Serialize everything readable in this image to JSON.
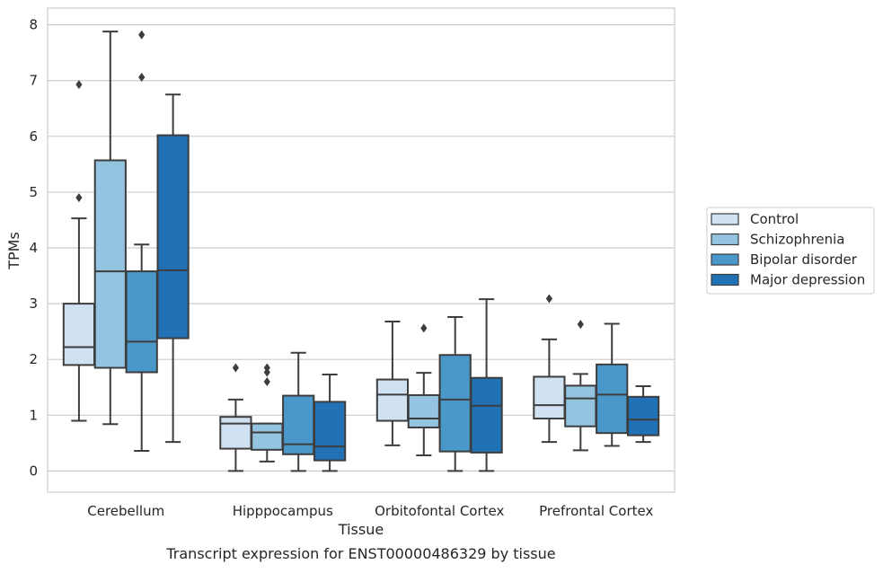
{
  "caption": "Transcript expression for ENST00000486329 by tissue",
  "chart_data": {
    "type": "box",
    "title": "",
    "xlabel": "Tissue",
    "ylabel": "TPMs",
    "ylim": [
      -0.38,
      8.3
    ],
    "yticks": [
      0,
      1,
      2,
      3,
      4,
      5,
      6,
      7,
      8
    ],
    "grid": "horizontal",
    "legend_position": "right",
    "categories": [
      "Cerebellum",
      "Hipppocampus",
      "Orbitofontal Cortex",
      "Prefrontal Cortex"
    ],
    "series": [
      {
        "name": "Control",
        "color": "#d0e1f2",
        "boxes": [
          {
            "whislo": 0.9,
            "q1": 1.9,
            "med": 2.22,
            "q3": 3.0,
            "whishi": 4.53,
            "fliers": [
              4.9,
              6.93
            ]
          },
          {
            "whislo": 0.0,
            "q1": 0.4,
            "med": 0.85,
            "q3": 0.97,
            "whishi": 1.28,
            "fliers": [
              1.85
            ]
          },
          {
            "whislo": 0.46,
            "q1": 0.9,
            "med": 1.37,
            "q3": 1.64,
            "whishi": 2.68,
            "fliers": []
          },
          {
            "whislo": 0.52,
            "q1": 0.94,
            "med": 1.18,
            "q3": 1.69,
            "whishi": 2.36,
            "fliers": [
              3.09
            ]
          }
        ]
      },
      {
        "name": "Schizophrenia",
        "color": "#94c4df",
        "boxes": [
          {
            "whislo": 0.84,
            "q1": 1.85,
            "med": 3.58,
            "q3": 5.57,
            "whishi": 7.88,
            "fliers": []
          },
          {
            "whislo": 0.17,
            "q1": 0.38,
            "med": 0.69,
            "q3": 0.85,
            "whishi": 0.85,
            "fliers": [
              1.6,
              1.77,
              1.85
            ]
          },
          {
            "whislo": 0.28,
            "q1": 0.78,
            "med": 0.94,
            "q3": 1.36,
            "whishi": 1.76,
            "fliers": [
              2.56
            ]
          },
          {
            "whislo": 0.37,
            "q1": 0.8,
            "med": 1.3,
            "q3": 1.53,
            "whishi": 1.74,
            "fliers": [
              2.63
            ]
          }
        ]
      },
      {
        "name": "Bipolar disorder",
        "color": "#4a98c9",
        "boxes": [
          {
            "whislo": 0.36,
            "q1": 1.77,
            "med": 2.32,
            "q3": 3.58,
            "whishi": 4.06,
            "fliers": [
              7.06,
              7.82
            ]
          },
          {
            "whislo": 0.0,
            "q1": 0.3,
            "med": 0.48,
            "q3": 1.35,
            "whishi": 2.12,
            "fliers": []
          },
          {
            "whislo": 0.0,
            "q1": 0.35,
            "med": 1.28,
            "q3": 2.08,
            "whishi": 2.76,
            "fliers": []
          },
          {
            "whislo": 0.45,
            "q1": 0.68,
            "med": 1.37,
            "q3": 1.91,
            "whishi": 2.64,
            "fliers": []
          }
        ]
      },
      {
        "name": "Major depression",
        "color": "#2171b5",
        "boxes": [
          {
            "whislo": 0.52,
            "q1": 2.38,
            "med": 3.6,
            "q3": 6.02,
            "whishi": 6.75,
            "fliers": []
          },
          {
            "whislo": 0.0,
            "q1": 0.19,
            "med": 0.44,
            "q3": 1.24,
            "whishi": 1.73,
            "fliers": []
          },
          {
            "whislo": 0.0,
            "q1": 0.33,
            "med": 1.17,
            "q3": 1.67,
            "whishi": 3.08,
            "fliers": []
          },
          {
            "whislo": 0.52,
            "q1": 0.64,
            "med": 0.92,
            "q3": 1.33,
            "whishi": 1.52,
            "fliers": []
          }
        ]
      }
    ]
  }
}
